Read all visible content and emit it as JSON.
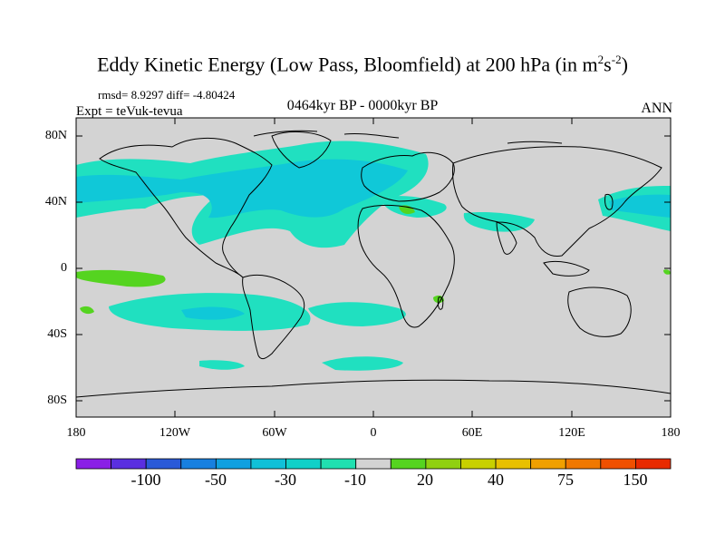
{
  "title_main": "Eddy Kinetic Energy (Low Pass, Bloomfield) at 200 hPa (in m",
  "title_sup1": "2",
  "title_mid": "s",
  "title_sup2": "-2",
  "title_end": ")",
  "stats": "rmsd= 8.9297 diff= -4.80424",
  "experiment": "Expt = teVuk-tevua",
  "period": "0464kyr BP - 0000kyr BP",
  "season": "ANN",
  "colors": {
    "land_ocean_zero": "#d3d3d3",
    "cyan_light": "#20e0c0",
    "cyan_mid": "#10c8d8",
    "green": "#55d420",
    "coast": "#000000"
  },
  "map_data": {
    "type": "contour-map",
    "projection": "cylindrical-equidistant",
    "lat_range": [
      -90,
      90
    ],
    "lon_range": [
      -180,
      180
    ],
    "lat_ticks": [
      "80N",
      "40N",
      "0",
      "40S",
      "80S"
    ],
    "lon_ticks": [
      "180",
      "120W",
      "60W",
      "0",
      "60E",
      "120E",
      "180"
    ]
  },
  "colorbar": {
    "colors": [
      "#8a1fe6",
      "#5a2fe0",
      "#2a5ad8",
      "#1880e0",
      "#10a0e0",
      "#10c0d8",
      "#10d0c8",
      "#20e0b0",
      "#d3d3d3",
      "#55d420",
      "#90d010",
      "#c8d000",
      "#e8c000",
      "#f0a000",
      "#f07800",
      "#f05000",
      "#e82a00"
    ],
    "labels": [
      "-100",
      "-50",
      "-30",
      "-10",
      "20",
      "40",
      "75",
      "150"
    ]
  }
}
